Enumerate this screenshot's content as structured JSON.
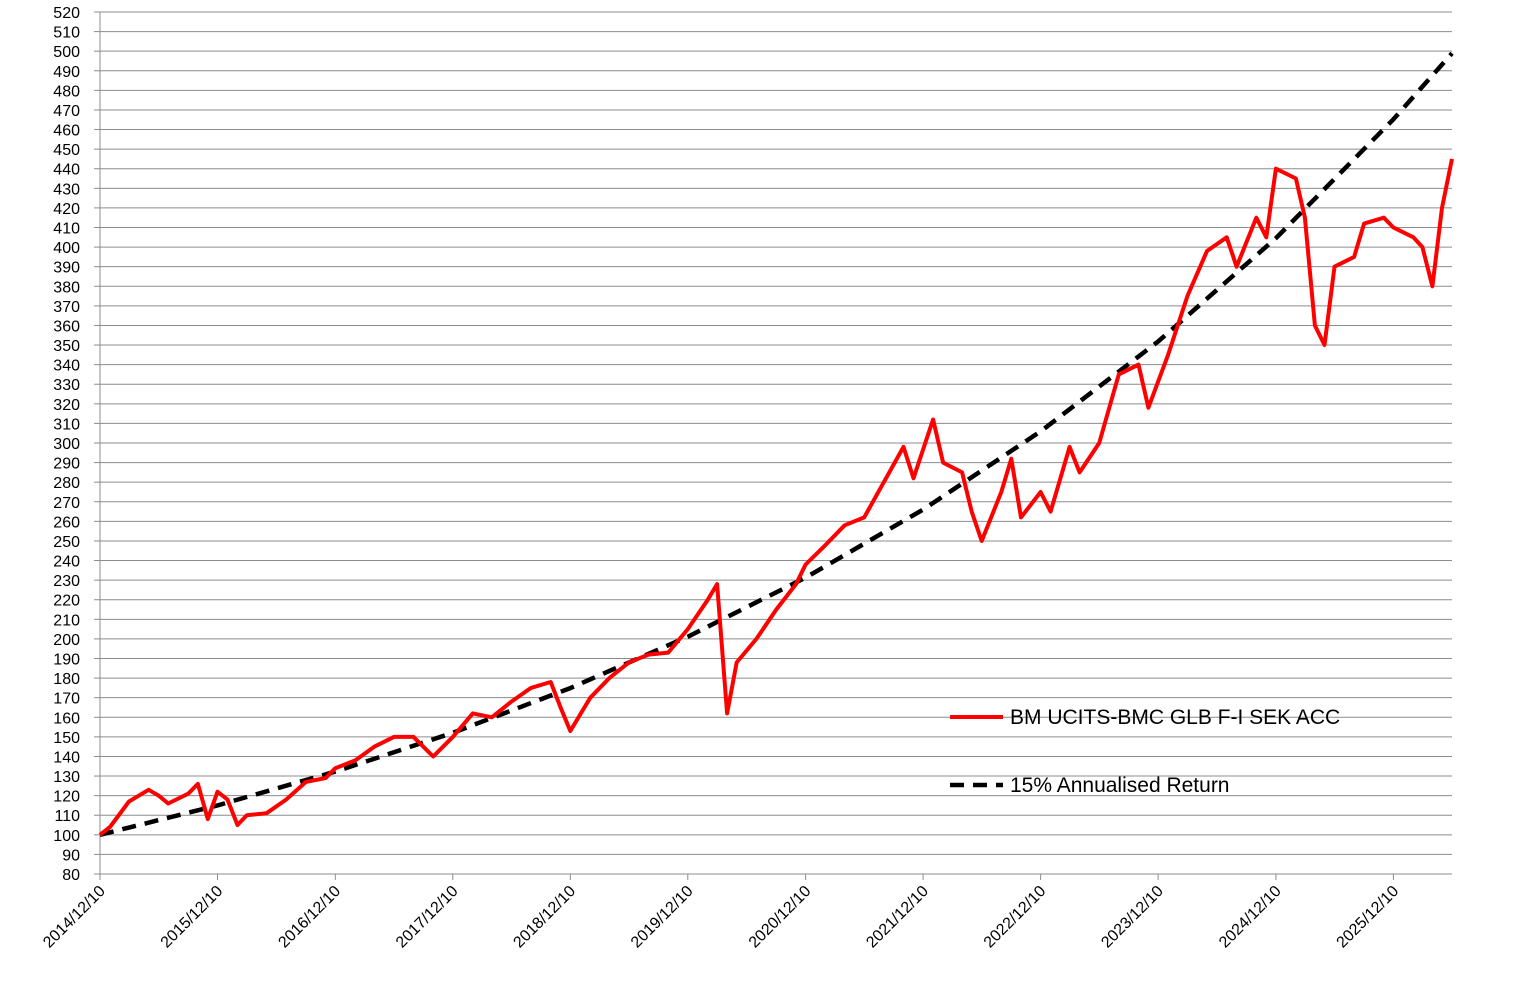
{
  "chart_data": {
    "type": "line",
    "x": [
      "2014/12/10",
      "2015/01/10",
      "2015/03/10",
      "2015/05/10",
      "2015/06/10",
      "2015/07/10",
      "2015/09/10",
      "2015/10/10",
      "2015/11/10",
      "2015/12/10",
      "2016/01/10",
      "2016/02/10",
      "2016/03/10",
      "2016/05/10",
      "2016/07/10",
      "2016/09/10",
      "2016/11/10",
      "2016/12/10",
      "2017/02/10",
      "2017/04/10",
      "2017/06/10",
      "2017/08/10",
      "2017/10/10",
      "2017/12/10",
      "2018/02/10",
      "2018/04/10",
      "2018/06/10",
      "2018/08/10",
      "2018/10/10",
      "2018/11/10",
      "2018/12/10",
      "2019/02/10",
      "2019/04/10",
      "2019/06/10",
      "2019/08/10",
      "2019/10/10",
      "2019/12/10",
      "2020/02/10",
      "2020/03/10",
      "2020/04/10",
      "2020/05/10",
      "2020/07/10",
      "2020/09/10",
      "2020/11/10",
      "2020/12/10",
      "2021/02/10",
      "2021/04/10",
      "2021/06/10",
      "2021/08/10",
      "2021/10/10",
      "2021/11/10",
      "2022/01/10",
      "2022/02/10",
      "2022/04/10",
      "2022/05/10",
      "2022/06/10",
      "2022/08/10",
      "2022/09/10",
      "2022/10/10",
      "2022/12/10",
      "2023/01/10",
      "2023/03/10",
      "2023/04/10",
      "2023/06/10",
      "2023/08/10",
      "2023/10/10",
      "2023/11/10",
      "2024/01/10",
      "2024/03/10",
      "2024/05/10",
      "2024/07/10",
      "2024/08/10",
      "2024/10/10",
      "2024/11/10",
      "2024/12/10",
      "2025/02/10",
      "2025/03/10",
      "2025/04/10",
      "2025/05/10",
      "2025/06/10",
      "2025/08/10",
      "2025/09/10",
      "2025/11/10",
      "2025/12/10",
      "2026/02/10",
      "2026/03/10",
      "2026/04/10",
      "2026/05/10",
      "2026/06/10"
    ],
    "series": [
      {
        "name": "BM UCITS-BMC GLB F-I SEK ACC",
        "color": "#ff0000",
        "dash": false,
        "values": [
          100,
          104,
          117,
          123,
          120,
          116,
          121,
          126,
          108,
          122,
          118,
          105,
          110,
          111,
          118,
          127,
          129,
          134,
          138,
          145,
          150,
          150,
          140,
          150,
          162,
          160,
          168,
          175,
          178,
          165,
          153,
          170,
          180,
          188,
          192,
          193,
          205,
          220,
          228,
          162,
          188,
          200,
          215,
          228,
          238,
          248,
          258,
          262,
          280,
          298,
          282,
          312,
          290,
          285,
          265,
          250,
          275,
          292,
          262,
          275,
          265,
          298,
          285,
          300,
          335,
          340,
          318,
          345,
          375,
          398,
          405,
          390,
          415,
          405,
          440,
          435,
          415,
          360,
          350,
          390,
          395,
          412,
          415,
          410,
          405,
          400,
          380,
          420,
          445
        ]
      },
      {
        "name": "15% Annualised Return",
        "color": "#000000",
        "dash": true,
        "x": [
          "2014/12/10",
          "2015/12/10",
          "2016/12/10",
          "2017/12/10",
          "2018/12/10",
          "2019/12/10",
          "2020/12/10",
          "2021/12/10",
          "2022/12/10",
          "2023/12/10",
          "2024/12/10",
          "2025/12/10",
          "2026/06/10"
        ],
        "values": [
          100,
          115,
          132.25,
          152.09,
          174.9,
          201.14,
          231.31,
          266,
          305.9,
          351.79,
          404.56,
          465.24,
          498.9
        ]
      }
    ],
    "xlim": [
      "2014/12/10",
      "2026/06/10"
    ],
    "xticks": [
      "2014/12/10",
      "2015/12/10",
      "2016/12/10",
      "2017/12/10",
      "2018/12/10",
      "2019/12/10",
      "2020/12/10",
      "2021/12/10",
      "2022/12/10",
      "2023/12/10",
      "2024/12/10",
      "2025/12/10"
    ],
    "ylim": [
      80,
      520
    ],
    "yticks": [
      80,
      90,
      100,
      110,
      120,
      130,
      140,
      150,
      160,
      170,
      180,
      190,
      200,
      210,
      220,
      230,
      240,
      250,
      260,
      270,
      280,
      290,
      300,
      310,
      320,
      330,
      340,
      350,
      360,
      370,
      380,
      390,
      400,
      410,
      420,
      430,
      440,
      450,
      460,
      470,
      480,
      490,
      500,
      510,
      520
    ],
    "grid": true
  }
}
